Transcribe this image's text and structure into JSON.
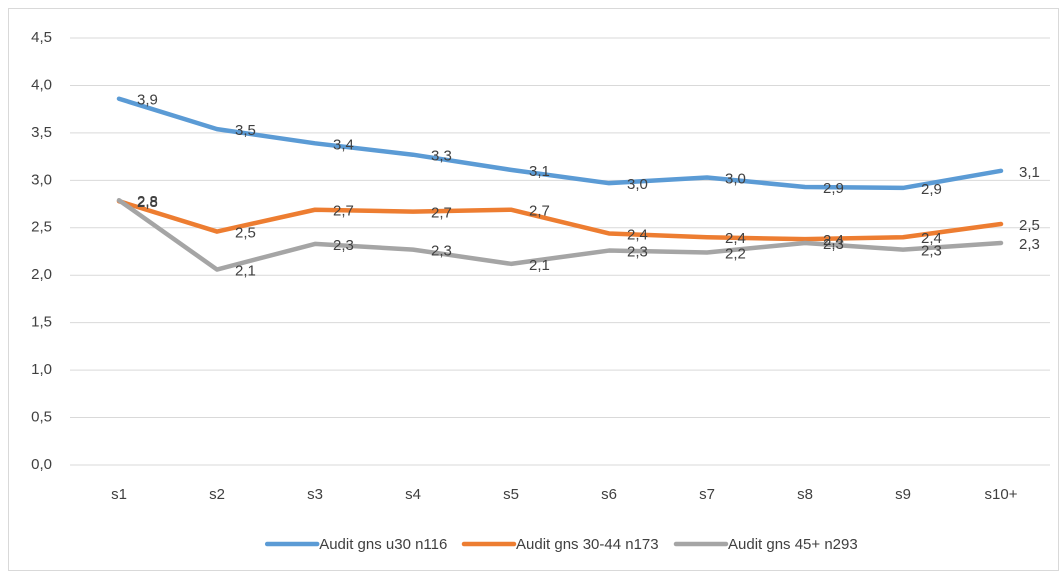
{
  "chart_data": {
    "type": "line",
    "categories": [
      "s1",
      "s2",
      "s3",
      "s4",
      "s5",
      "s6",
      "s7",
      "s8",
      "s9",
      "s10+"
    ],
    "series": [
      {
        "name": "Audit gns u30 n116",
        "color": "#5b9bd5",
        "values": [
          3.86,
          3.54,
          3.39,
          3.27,
          3.11,
          2.97,
          3.03,
          2.93,
          2.92,
          3.1
        ],
        "value_labels": [
          "3,9",
          "3,5",
          "3,4",
          "3,3",
          "3,1",
          "3,0",
          "3,0",
          "2,9",
          "2,9",
          "3,1"
        ]
      },
      {
        "name": "Audit gns 30-44 n173",
        "color": "#ed7d31",
        "values": [
          2.78,
          2.46,
          2.69,
          2.67,
          2.69,
          2.44,
          2.4,
          2.38,
          2.4,
          2.54
        ],
        "value_labels": [
          "2,8",
          "2,5",
          "2,7",
          "2,7",
          "2,7",
          "2,4",
          "2,4",
          "2,4",
          "2,4",
          "2,5"
        ]
      },
      {
        "name": "Audit gns 45+ n293",
        "color": "#a5a5a5",
        "values": [
          2.79,
          2.06,
          2.33,
          2.27,
          2.12,
          2.26,
          2.24,
          2.34,
          2.27,
          2.34
        ],
        "value_labels": [
          "2,8",
          "2,1",
          "2,3",
          "2,3",
          "2,1",
          "2,3",
          "2,2",
          "2,3",
          "2,3",
          "2,3"
        ]
      }
    ],
    "ylim": [
      0,
      4.5
    ],
    "yticks": [
      {
        "value": 0,
        "label": "0,0"
      },
      {
        "value": 0.5,
        "label": "0,5"
      },
      {
        "value": 1,
        "label": "1,0"
      },
      {
        "value": 1.5,
        "label": "1,5"
      },
      {
        "value": 2,
        "label": "2,0"
      },
      {
        "value": 2.5,
        "label": "2,5"
      },
      {
        "value": 3,
        "label": "3,0"
      },
      {
        "value": 3.5,
        "label": "3,5"
      },
      {
        "value": 4,
        "label": "4,0"
      },
      {
        "value": 4.5,
        "label": "4,5"
      }
    ],
    "grid": true,
    "legend": "bottom"
  }
}
